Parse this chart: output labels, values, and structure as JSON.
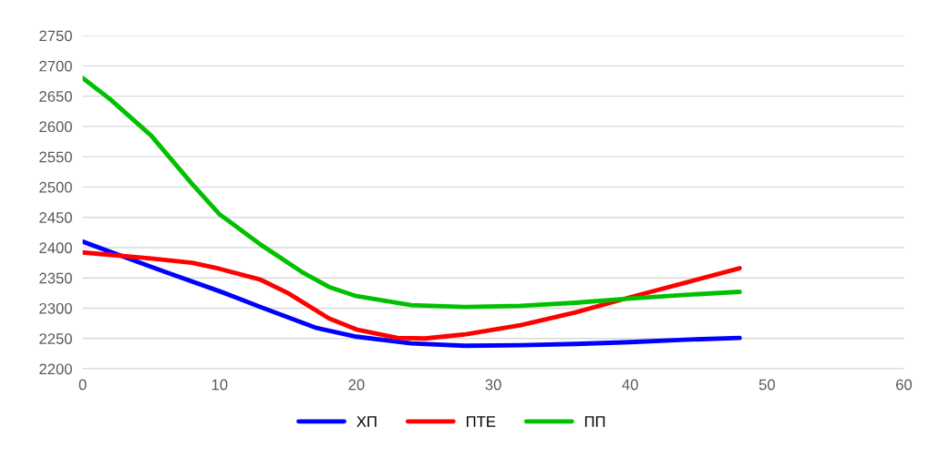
{
  "chart_data": {
    "type": "line",
    "xlim": [
      0,
      60
    ],
    "xticks": [
      0,
      10,
      20,
      30,
      40,
      50,
      60
    ],
    "ylim": [
      2200,
      2750
    ],
    "yticks": [
      2200,
      2250,
      2300,
      2350,
      2400,
      2450,
      2500,
      2550,
      2600,
      2650,
      2700,
      2750
    ],
    "grid": "y",
    "legend": "bottom",
    "marker": "none",
    "line_style": "solid",
    "series": [
      {
        "name": "ХП",
        "color": "#0000ff",
        "x": [
          0,
          3,
          6,
          10,
          13,
          17,
          20,
          24,
          28,
          32,
          36,
          40,
          44,
          48
        ],
        "values": [
          2410,
          2385,
          2360,
          2328,
          2302,
          2268,
          2253,
          2242,
          2238,
          2239,
          2241,
          2244,
          2248,
          2251
        ]
      },
      {
        "name": "ПТЕ",
        "color": "#ff0000",
        "x": [
          0,
          5,
          8,
          10,
          13,
          15,
          18,
          20,
          23,
          25,
          28,
          32,
          36,
          40,
          44,
          48
        ],
        "values": [
          2392,
          2382,
          2375,
          2365,
          2347,
          2325,
          2283,
          2265,
          2251,
          2250,
          2257,
          2272,
          2293,
          2318,
          2342,
          2366
        ]
      },
      {
        "name": "ПП",
        "color": "#00c000",
        "x": [
          0,
          2,
          5,
          8,
          10,
          13,
          16,
          18,
          20,
          24,
          28,
          32,
          36,
          40,
          44,
          48
        ],
        "values": [
          2680,
          2645,
          2585,
          2505,
          2455,
          2405,
          2360,
          2335,
          2320,
          2305,
          2302,
          2304,
          2309,
          2316,
          2322,
          2327
        ]
      }
    ]
  }
}
